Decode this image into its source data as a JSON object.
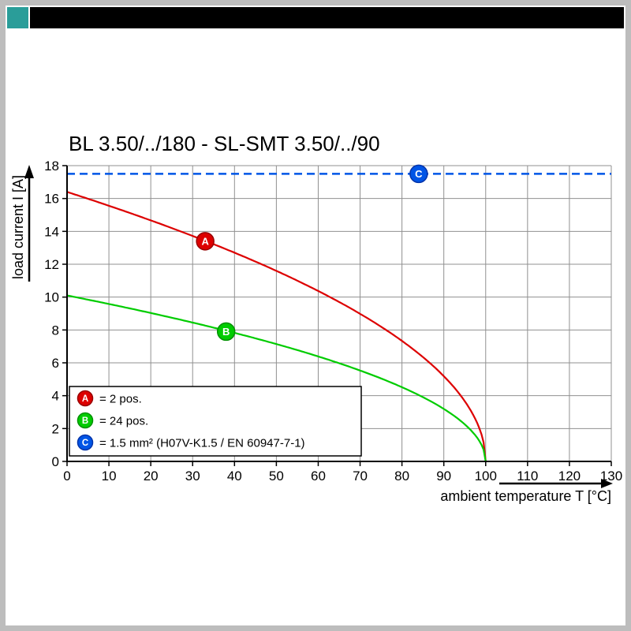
{
  "frame": {
    "border_color": "#bdbdbd",
    "header_bar_color": "#000000",
    "brand_square_color": "#2a9d99"
  },
  "chart_data": {
    "type": "line",
    "title": "BL 3.50/../180 - SL-SMT 3.50/../90",
    "xlabel": "ambient temperature T [°C]",
    "ylabel": "load current I [A]",
    "xlim": [
      0,
      130
    ],
    "ylim": [
      0,
      18
    ],
    "xtick_step": 10,
    "ytick_step": 2,
    "grid": true,
    "legend_position": "bottom-left",
    "series": [
      {
        "id": "A",
        "legend_label": "= 2 pos.",
        "color": "#dd0000",
        "ring": "#990000",
        "kind": "derating-curve",
        "i0": 16.4,
        "t_end": 100,
        "points": [
          [
            0,
            16.4
          ],
          [
            10,
            15.6
          ],
          [
            20,
            14.7
          ],
          [
            30,
            13.7
          ],
          [
            40,
            12.7
          ],
          [
            50,
            11.6
          ],
          [
            60,
            10.4
          ],
          [
            70,
            9.0
          ],
          [
            80,
            7.3
          ],
          [
            90,
            5.2
          ],
          [
            95,
            3.7
          ],
          [
            100,
            0
          ]
        ],
        "marker": {
          "t": 33,
          "i": 13.4
        }
      },
      {
        "id": "B",
        "legend_label": "= 24 pos.",
        "color": "#00cc00",
        "ring": "#009000",
        "kind": "derating-curve",
        "i0": 10.1,
        "t_end": 100,
        "points": [
          [
            0,
            10.1
          ],
          [
            10,
            9.6
          ],
          [
            20,
            9.0
          ],
          [
            30,
            8.5
          ],
          [
            40,
            7.8
          ],
          [
            50,
            7.1
          ],
          [
            60,
            6.4
          ],
          [
            70,
            5.5
          ],
          [
            80,
            4.5
          ],
          [
            90,
            3.2
          ],
          [
            95,
            2.3
          ],
          [
            100,
            0
          ]
        ],
        "marker": {
          "t": 38,
          "i": 7.9
        }
      },
      {
        "id": "C",
        "legend_label": "= 1.5 mm² (H07V-K1.5 / EN 60947-7-1)",
        "color": "#0055e6",
        "ring": "#0033aa",
        "kind": "hline",
        "value": 17.5,
        "dash": true,
        "marker": {
          "t": 84,
          "i": 17.5
        }
      }
    ]
  }
}
